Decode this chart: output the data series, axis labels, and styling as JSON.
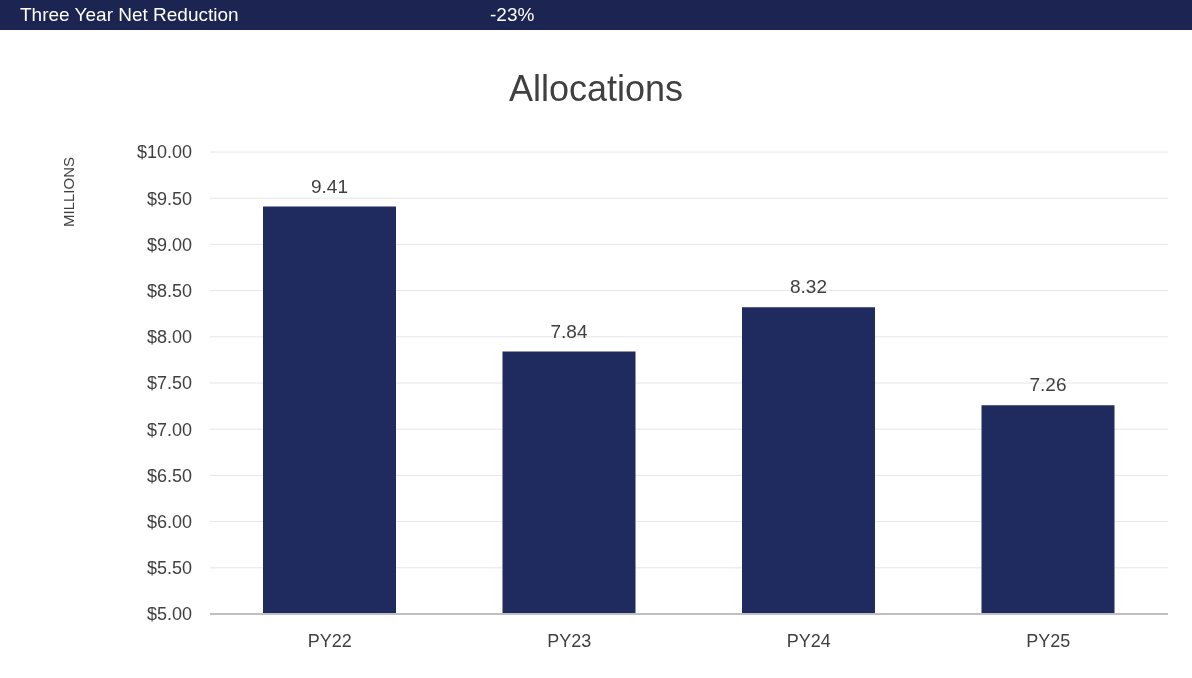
{
  "chart_data": {
    "type": "bar",
    "title": "Allocations",
    "ylabel": "MILLIONS",
    "annotations": [
      "Three Year Net Reduction",
      "-23%"
    ],
    "categories": [
      "PY22",
      "PY23",
      "PY24",
      "PY25"
    ],
    "values": [
      9.41,
      7.84,
      8.32,
      7.26
    ],
    "color": "#1f2a5e",
    "data_labels": true,
    "ylim": [
      5,
      10
    ],
    "yticks": [
      {
        "value": 5,
        "label": "$5.00"
      },
      {
        "value": 5.5,
        "label": "$5.50"
      },
      {
        "value": 6,
        "label": "$6.00"
      },
      {
        "value": 6.5,
        "label": "$6.50"
      },
      {
        "value": 7,
        "label": "$7.00"
      },
      {
        "value": 7.5,
        "label": "$7.50"
      },
      {
        "value": 8,
        "label": "$8.00"
      },
      {
        "value": 8.5,
        "label": "$8.50"
      },
      {
        "value": 9,
        "label": "$9.00"
      },
      {
        "value": 9.5,
        "label": "$9.50"
      },
      {
        "value": 10,
        "label": "$10.00"
      }
    ],
    "grid": "y"
  }
}
